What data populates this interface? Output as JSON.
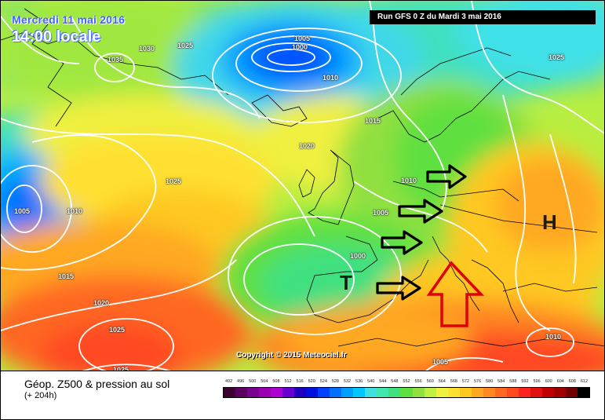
{
  "header": {
    "date": "Mercredi 11 mai 2016",
    "time": "14:00 locale",
    "run": "Run GFS 0 Z du Mardi 3 mai 2016"
  },
  "copyright": "Copyright © 2015 Meteociel.fr",
  "footer": {
    "title": "Géop. Z500 & pression au sol",
    "subtitle": "(+ 204h)"
  },
  "scale": {
    "values": [
      "492",
      "496",
      "500",
      "504",
      "508",
      "512",
      "516",
      "520",
      "524",
      "528",
      "532",
      "536",
      "540",
      "544",
      "548",
      "552",
      "556",
      "560",
      "564",
      "568",
      "572",
      "576",
      "580",
      "584",
      "588",
      "592",
      "596",
      "600",
      "604",
      "608",
      "612"
    ],
    "colors": [
      "#3a0030",
      "#5a0060",
      "#7a0090",
      "#9a00b0",
      "#b000d0",
      "#6a00d0",
      "#2000c0",
      "#0010e0",
      "#0040ff",
      "#0070ff",
      "#00a0ff",
      "#00c8ff",
      "#40e0e0",
      "#40e8b0",
      "#40e080",
      "#60e040",
      "#90e040",
      "#c0f040",
      "#f0f040",
      "#ffe030",
      "#ffc820",
      "#ffa820",
      "#ff8820",
      "#ff6820",
      "#ff4a20",
      "#ff2020",
      "#e01010",
      "#c00000",
      "#a00000",
      "#700000",
      "#000000"
    ]
  },
  "pressure_labels": [
    "1035",
    "1030",
    "1025",
    "1005",
    "1000",
    "1010",
    "1025",
    "1015",
    "1020",
    "1025",
    "1005",
    "1010",
    "1010",
    "1005",
    "1015",
    "1000",
    "1020",
    "1025",
    "1025",
    "1005",
    "1010"
  ],
  "systems": {
    "high": "H",
    "low": "T"
  },
  "icons": {
    "arrows": [
      "flow-arrow-icon",
      "flow-arrow-icon",
      "flow-arrow-icon",
      "flow-arrow-icon"
    ],
    "highlight": "up-arrow-icon"
  }
}
